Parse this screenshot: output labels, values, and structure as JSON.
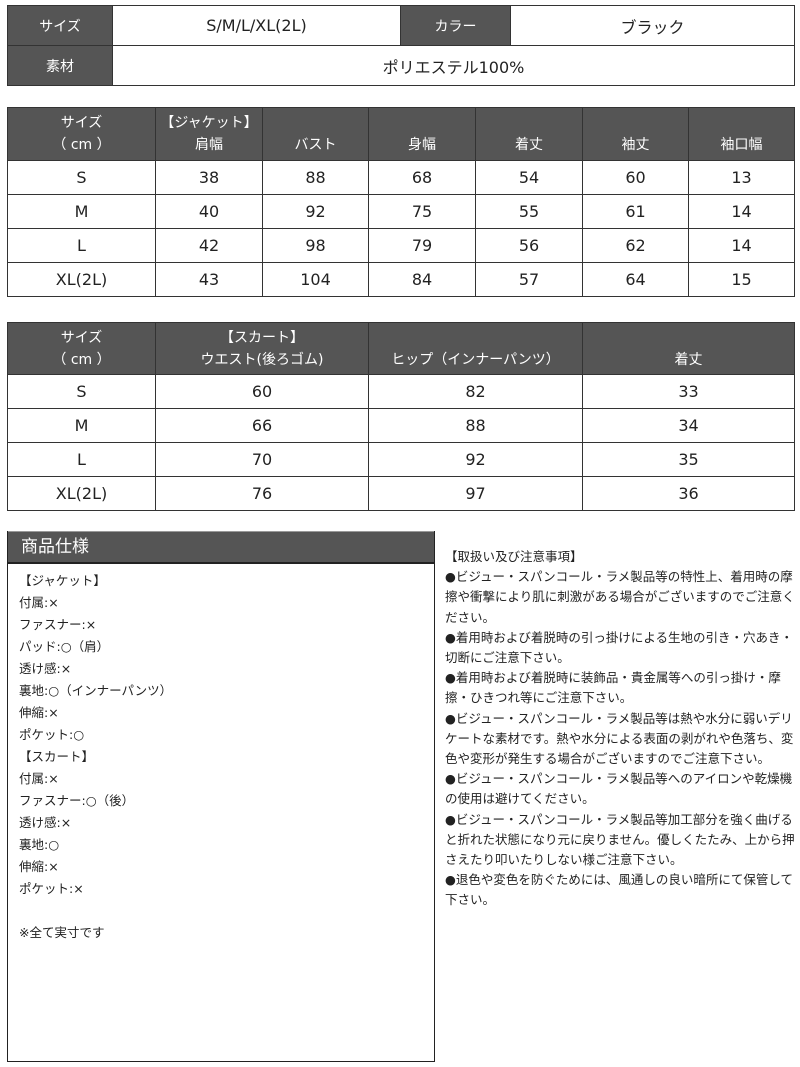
{
  "info": {
    "size_label": "サイズ",
    "size_value": "S/M/L/XL(2L)",
    "color_label": "カラー",
    "color_value": "ブラック",
    "material_label": "素材",
    "material_value": "ポリエステル100%"
  },
  "jacket": {
    "header_size": "サイズ",
    "header_unit": "（ cm ）",
    "header_group": "【ジャケット】",
    "columns": [
      "肩幅",
      "バスト",
      "身幅",
      "着丈",
      "袖丈",
      "袖口幅"
    ],
    "rows": [
      [
        "S",
        "38",
        "88",
        "68",
        "54",
        "60",
        "13"
      ],
      [
        "M",
        "40",
        "92",
        "75",
        "55",
        "61",
        "14"
      ],
      [
        "L",
        "42",
        "98",
        "79",
        "56",
        "62",
        "14"
      ],
      [
        "XL(2L)",
        "43",
        "104",
        "84",
        "57",
        "64",
        "15"
      ]
    ]
  },
  "skirt": {
    "header_size": "サイズ",
    "header_unit": "（ cm ）",
    "header_group": "【スカート】",
    "columns": [
      "ウエスト(後ろゴム)",
      "ヒップ（インナーパンツ）",
      "着丈"
    ],
    "rows": [
      [
        "S",
        "60",
        "82",
        "33"
      ],
      [
        "M",
        "66",
        "88",
        "34"
      ],
      [
        "L",
        "70",
        "92",
        "35"
      ],
      [
        "XL(2L)",
        "76",
        "97",
        "36"
      ]
    ]
  },
  "spec": {
    "title": "商品仕様",
    "lines": [
      "【ジャケット】",
      "付属:×",
      "ファスナー:×",
      "パッド:○（肩）",
      "透け感:×",
      "裏地:○（インナーパンツ）",
      "伸縮:×",
      "ポケット:○",
      "【スカート】",
      "付属:×",
      "ファスナー:○（後）",
      "透け感:×",
      "裏地:○",
      "伸縮:×",
      "ポケット:×",
      "",
      "※全て実寸です"
    ]
  },
  "notes": {
    "title": "【取扱い及び注意事項】",
    "items": [
      "●ビジュー・スパンコール・ラメ製品等の特性上、着用時の摩擦や衝撃により肌に刺激がある場合がございますのでご注意ください。",
      "●着用時および着脱時の引っ掛けによる生地の引き・穴あき・切断にご注意下さい。",
      "●着用時および着脱時に装飾品・貴金属等への引っ掛け・摩擦・ひきつれ等にご注意下さい。",
      "●ビジュー・スパンコール・ラメ製品等は熱や水分に弱いデリケートな素材です。熱や水分による表面の剥がれや色落ち、変色や変形が発生する場合がございますのでご注意下さい。",
      "●ビジュー・スパンコール・ラメ製品等へのアイロンや乾燥機の使用は避けてください。",
      "●ビジュー・スパンコール・ラメ製品等加工部分を強く曲げると折れた状態になり元に戻りません。優しくたたみ、上から押さえたり叩いたりしない様ご注意下さい。",
      "●退色や変色を防ぐためには、風通しの良い暗所にて保管して下さい。"
    ]
  }
}
